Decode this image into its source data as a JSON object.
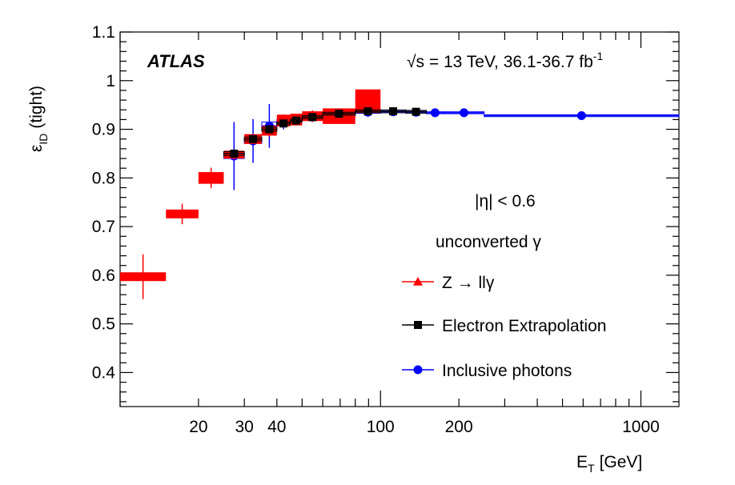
{
  "chart_data": {
    "type": "scatter",
    "title": "",
    "xlabel": "E",
    "xlabel_sub": "T",
    "xlabel_unit": "[GeV]",
    "ylabel": "ε",
    "ylabel_sub": "ID",
    "ylabel_suffix": "(tight)",
    "x_scale": "log",
    "xlim": [
      10,
      1400
    ],
    "ylim": [
      0.33,
      1.1
    ],
    "x_ticks": [
      {
        "value": 20,
        "label": "20"
      },
      {
        "value": 30,
        "label": "30"
      },
      {
        "value": 40,
        "label": "40"
      },
      {
        "value": 100,
        "label": "100"
      },
      {
        "value": 200,
        "label": "200"
      },
      {
        "value": 1000,
        "label": "1000"
      }
    ],
    "y_ticks": [
      {
        "value": 0.4,
        "label": "0.4"
      },
      {
        "value": 0.5,
        "label": "0.5"
      },
      {
        "value": 0.6,
        "label": "0.6"
      },
      {
        "value": 0.7,
        "label": "0.7"
      },
      {
        "value": 0.8,
        "label": "0.8"
      },
      {
        "value": 0.9,
        "label": "0.9"
      },
      {
        "value": 1.0,
        "label": "1"
      },
      {
        "value": 1.1,
        "label": "1.1"
      }
    ],
    "experiment_label": "ATLAS",
    "energy_label": "√s = 13 TeV, 36.1-36.7 fb",
    "energy_label_sup": "-1",
    "annotations": [
      "|η| < 0.6",
      "unconverted γ"
    ],
    "legend_position": "right",
    "series": [
      {
        "name": "Z → llγ",
        "color": "#ff0000",
        "marker": "triangle",
        "points": [
          {
            "xlo": 10,
            "xhi": 15,
            "y": 0.597,
            "yerr": 0.046,
            "sys": 0.009
          },
          {
            "xlo": 15,
            "xhi": 20,
            "y": 0.726,
            "yerr": 0.021,
            "sys": 0.009
          },
          {
            "xlo": 20,
            "xhi": 25,
            "y": 0.8,
            "yerr": 0.021,
            "sys": 0.012
          },
          {
            "xlo": 25,
            "xhi": 30,
            "y": 0.848,
            "yerr": 0.01,
            "sys": 0.008
          },
          {
            "xlo": 30,
            "xhi": 35,
            "y": 0.88,
            "yerr": 0.01,
            "sys": 0.01
          },
          {
            "xlo": 35,
            "xhi": 40,
            "y": 0.897,
            "yerr": 0.012,
            "sys": 0.01
          },
          {
            "xlo": 40,
            "xhi": 45,
            "y": 0.918,
            "yerr": 0.012,
            "sys": 0.012
          },
          {
            "xlo": 45,
            "xhi": 50,
            "y": 0.92,
            "yerr": 0.012,
            "sys": 0.012
          },
          {
            "xlo": 50,
            "xhi": 60,
            "y": 0.927,
            "yerr": 0.012,
            "sys": 0.01
          },
          {
            "xlo": 60,
            "xhi": 80,
            "y": 0.927,
            "yerr": 0.012,
            "sys": 0.016
          },
          {
            "xlo": 80,
            "xhi": 100,
            "y": 0.958,
            "yerr": 0.024,
            "sys": 0.024
          }
        ]
      },
      {
        "name": "Electron Extrapolation",
        "color": "#000000",
        "marker": "square",
        "points": [
          {
            "xlo": 25,
            "xhi": 30,
            "y": 0.85,
            "yerr": 0.008,
            "sys": 0.004
          },
          {
            "xlo": 30,
            "xhi": 35,
            "y": 0.88,
            "yerr": 0.007,
            "sys": 0.004
          },
          {
            "xlo": 35,
            "xhi": 40,
            "y": 0.9,
            "yerr": 0.006,
            "sys": 0.004
          },
          {
            "xlo": 40,
            "xhi": 45,
            "y": 0.912,
            "yerr": 0.005,
            "sys": 0.003
          },
          {
            "xlo": 45,
            "xhi": 50,
            "y": 0.918,
            "yerr": 0.005,
            "sys": 0.003
          },
          {
            "xlo": 50,
            "xhi": 60,
            "y": 0.925,
            "yerr": 0.004,
            "sys": 0.003
          },
          {
            "xlo": 60,
            "xhi": 80,
            "y": 0.932,
            "yerr": 0.004,
            "sys": 0.003
          },
          {
            "xlo": 80,
            "xhi": 100,
            "y": 0.937,
            "yerr": 0.004,
            "sys": 0.003
          },
          {
            "xlo": 100,
            "xhi": 125,
            "y": 0.937,
            "yerr": 0.004,
            "sys": 0.003
          },
          {
            "xlo": 125,
            "xhi": 150,
            "y": 0.936,
            "yerr": 0.004,
            "sys": 0.003
          }
        ]
      },
      {
        "name": "Inclusive photons",
        "color": "#0000ff",
        "marker": "circle",
        "points": [
          {
            "xlo": 25,
            "xhi": 30,
            "y": 0.845,
            "yerr": 0.07,
            "sys": 0.005
          },
          {
            "xlo": 30,
            "xhi": 35,
            "y": 0.876,
            "yerr": 0.045,
            "sys": 0.005
          },
          {
            "xlo": 35,
            "xhi": 40,
            "y": 0.907,
            "yerr": 0.045,
            "sys": 0.008
          },
          {
            "xlo": 40,
            "xhi": 45,
            "y": 0.915,
            "yerr": 0.015,
            "sys": 0.005
          },
          {
            "xlo": 45,
            "xhi": 50,
            "y": 0.92,
            "yerr": 0.01,
            "sys": 0.004
          },
          {
            "xlo": 50,
            "xhi": 60,
            "y": 0.925,
            "yerr": 0.008,
            "sys": 0.003
          },
          {
            "xlo": 60,
            "xhi": 80,
            "y": 0.93,
            "yerr": 0.005,
            "sys": 0.003
          },
          {
            "xlo": 80,
            "xhi": 100,
            "y": 0.935,
            "yerr": 0.004,
            "sys": 0.002
          },
          {
            "xlo": 100,
            "xhi": 125,
            "y": 0.936,
            "yerr": 0.003,
            "sys": 0.002
          },
          {
            "xlo": 125,
            "xhi": 150,
            "y": 0.935,
            "yerr": 0.003,
            "sys": 0.002
          },
          {
            "xlo": 150,
            "xhi": 175,
            "y": 0.934,
            "yerr": 0.003,
            "sys": 0.002
          },
          {
            "xlo": 175,
            "xhi": 250,
            "y": 0.934,
            "yerr": 0.003,
            "sys": 0.002
          },
          {
            "xlo": 250,
            "xhi": 1400,
            "y": 0.928,
            "yerr": 0.004,
            "sys": 0.002
          }
        ]
      }
    ]
  }
}
